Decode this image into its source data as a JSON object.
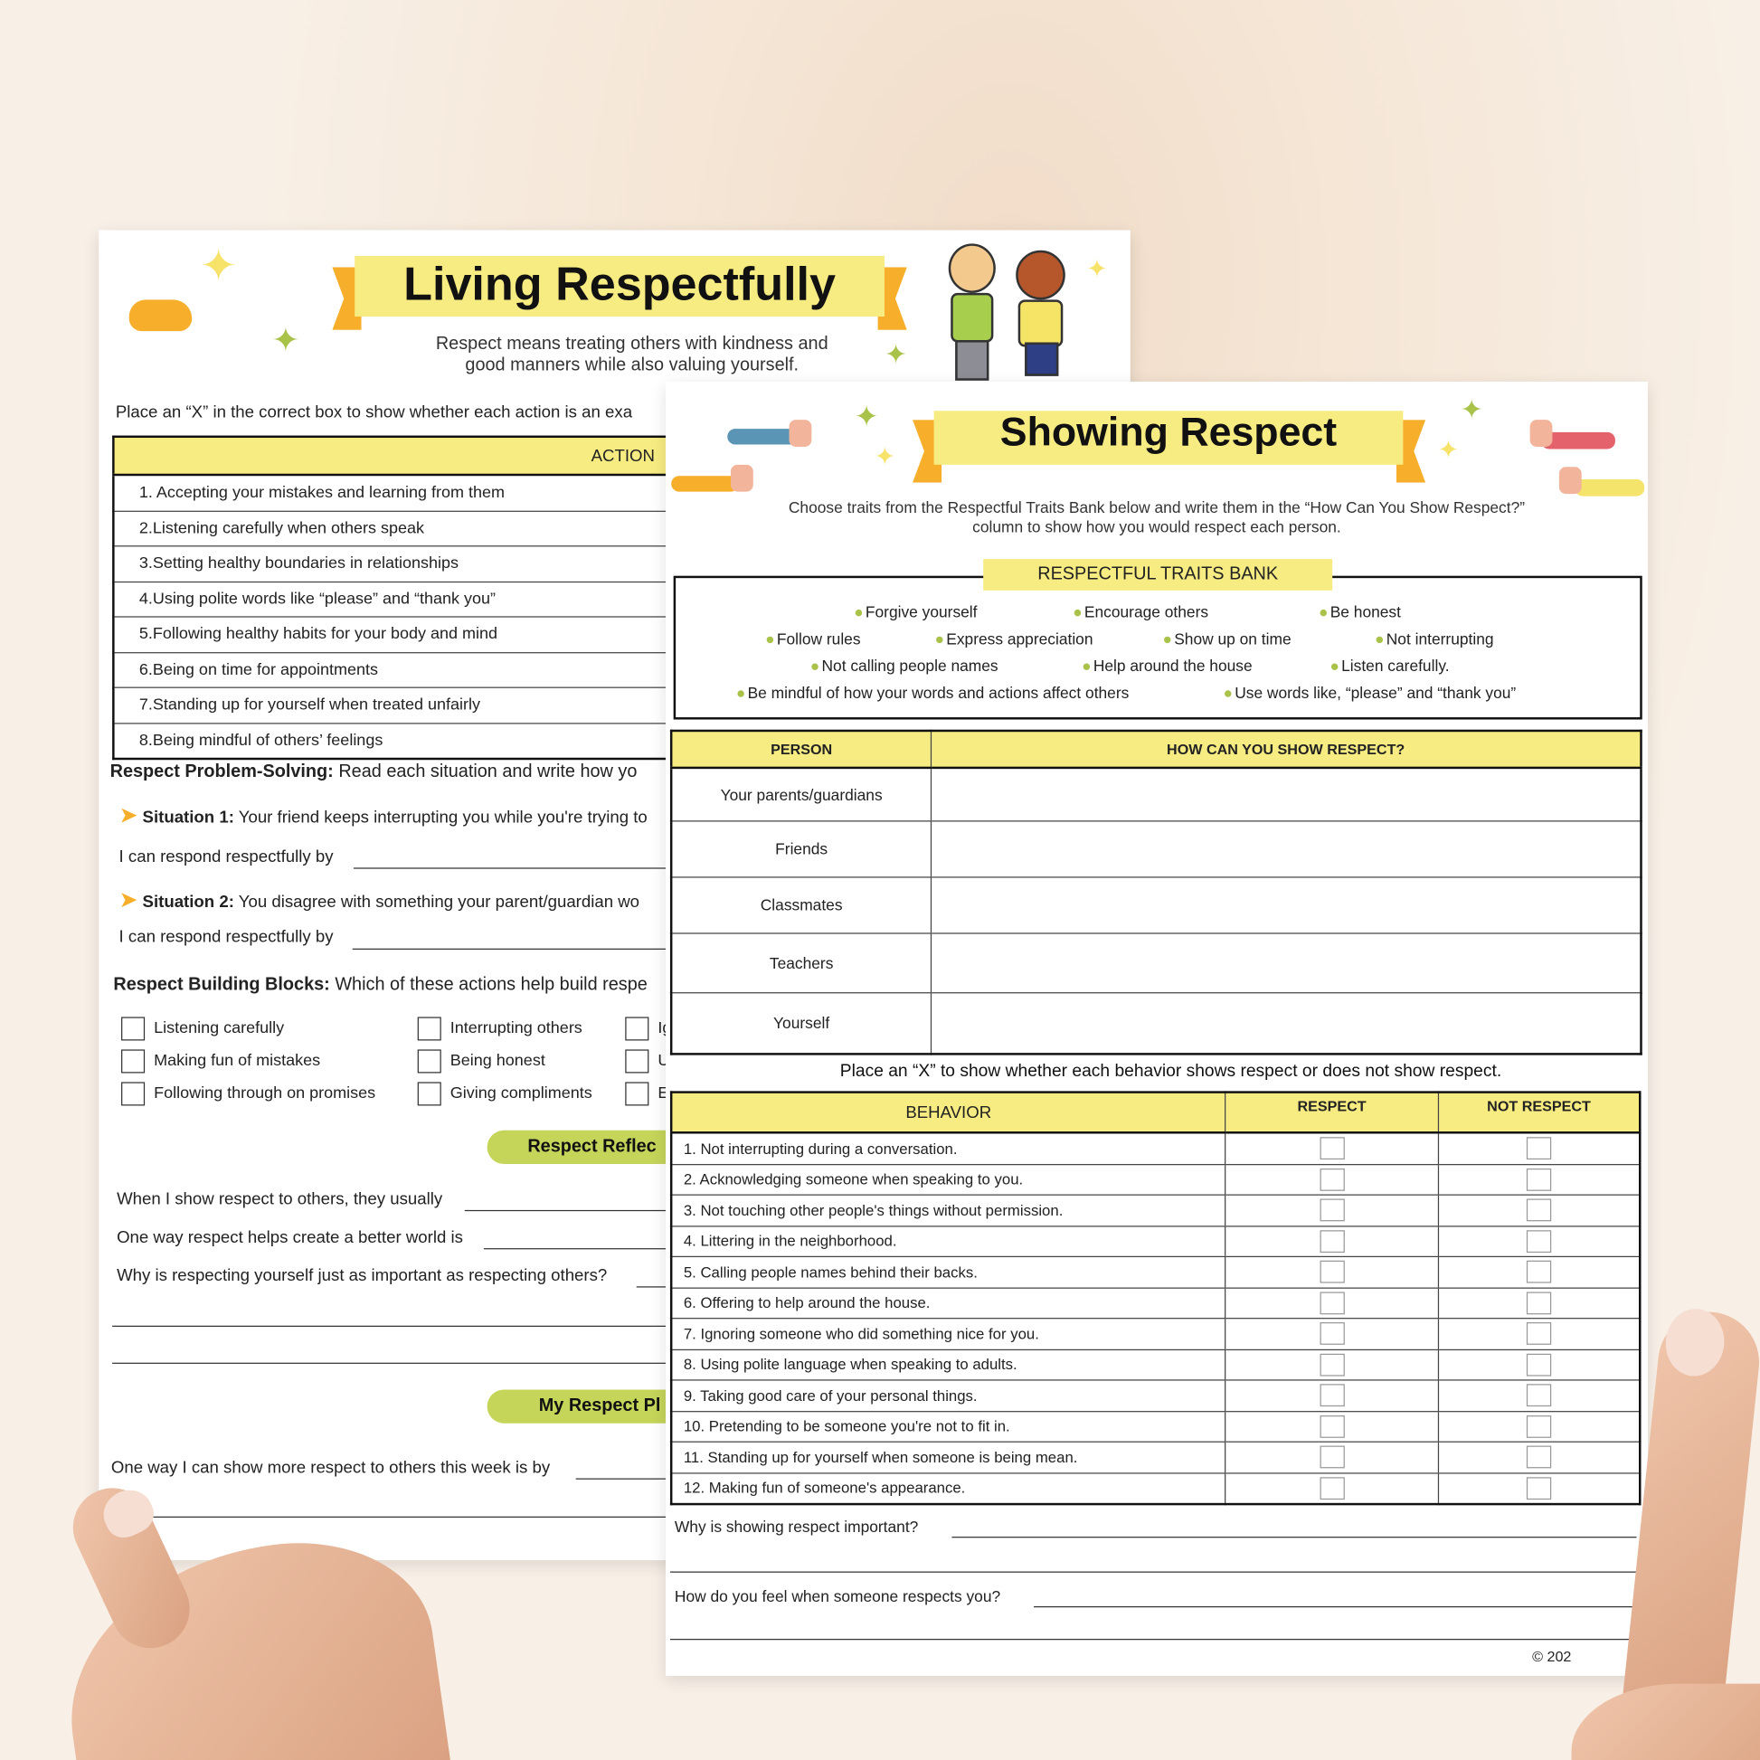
{
  "living_respectfully": {
    "title": "Living Respectfully",
    "subtitle_line1": "Respect means treating others with kindness and",
    "subtitle_line2": "good manners while also valuing yourself.",
    "instruction": "Place an “X” in the correct box to show whether each action is an exa",
    "table_header": "ACTION",
    "actions": [
      "1.  Accepting your mistakes and learning from them",
      "2.Listening carefully when others speak",
      "3.Setting healthy boundaries in relationships",
      "4.Using polite words like “please” and “thank you”",
      "5.Following healthy habits for your body and mind",
      "6.Being on time for appointments",
      "7.Standing up for yourself when treated unfairly",
      "8.Being mindful of others’ feelings"
    ],
    "problem_solving_label": "Respect Problem-Solving:",
    "problem_solving_text": "Read each situation and write how yo",
    "situation1_label": "Situation 1:",
    "situation1_text": "Your friend keeps interrupting you while you're trying to",
    "situation2_label": "Situation 2:",
    "situation2_text": "You disagree with something your parent/guardian wo",
    "respond_prompt": "I can respond respectfully by",
    "building_blocks_label": "Respect Building Blocks:",
    "building_blocks_text": "Which of these actions help build respe",
    "checkbox_col1": [
      "Listening carefully",
      "Making fun of mistakes",
      "Following through on promises"
    ],
    "checkbox_col2": [
      "Interrupting others",
      "Being honest",
      "Giving compliments"
    ],
    "checkbox_col3": [
      "Ig",
      "U",
      "E"
    ],
    "reflection_heading": "Respect Reflec",
    "reflection_prompts": [
      "When I show respect to others, they usually",
      "One way respect helps create a better world is",
      "Why is respecting yourself just as important as respecting others?"
    ],
    "plan_heading": "My Respect Pl",
    "plan_prompt": "One way I can show more respect to others this week is by"
  },
  "showing_respect": {
    "title": "Showing Respect",
    "instruction_line1": "Choose traits from the Respectful Traits Bank below and write them in the “How Can You Show Respect?”",
    "instruction_line2": "column to show how you would respect each person.",
    "bank_label": "RESPECTFUL TRAITS BANK",
    "traits": [
      "Forgive yourself",
      "Encourage others",
      "Be honest",
      "Follow rules",
      "Express appreciation",
      "Show up on time",
      "Not interrupting",
      "Not calling people names",
      "Help around the house",
      "Listen carefully.",
      "Be mindful of how your words and actions affect others",
      "Use words like, “please” and “thank you”"
    ],
    "person_header": "PERSON",
    "how_header": "HOW CAN YOU SHOW RESPECT?",
    "persons": [
      "Your parents/guardians",
      "Friends",
      "Classmates",
      "Teachers",
      "Yourself"
    ],
    "behavior_instruction": "Place an “X” to show whether each behavior shows respect or does not show respect.",
    "behavior_header": "BEHAVIOR",
    "respect_header": "RESPECT",
    "not_respect_header": "NOT RESPECT",
    "behaviors": [
      "1. Not interrupting during a conversation.",
      "2. Acknowledging someone when speaking to you.",
      "3. Not touching other people's things without permission.",
      "4. Littering in the neighborhood.",
      "5. Calling people names behind their backs.",
      "6. Offering to help around the house.",
      "7. Ignoring someone who did something nice for you.",
      "8. Using polite language when speaking to adults.",
      "9. Taking good care of your personal things.",
      "10. Pretending to be someone you're not to fit in.",
      "11. Standing up for yourself when someone is being mean.",
      "12. Making fun of someone's appearance."
    ],
    "question1": "Why is showing respect important?",
    "question2": "How do you feel when someone respects you?",
    "copyright": "© 202"
  },
  "colors": {
    "title_band": "#f7ec82",
    "ribbon": "#f7ae2a",
    "pill": "#c5d55a",
    "bullet": "#a9c24a"
  }
}
